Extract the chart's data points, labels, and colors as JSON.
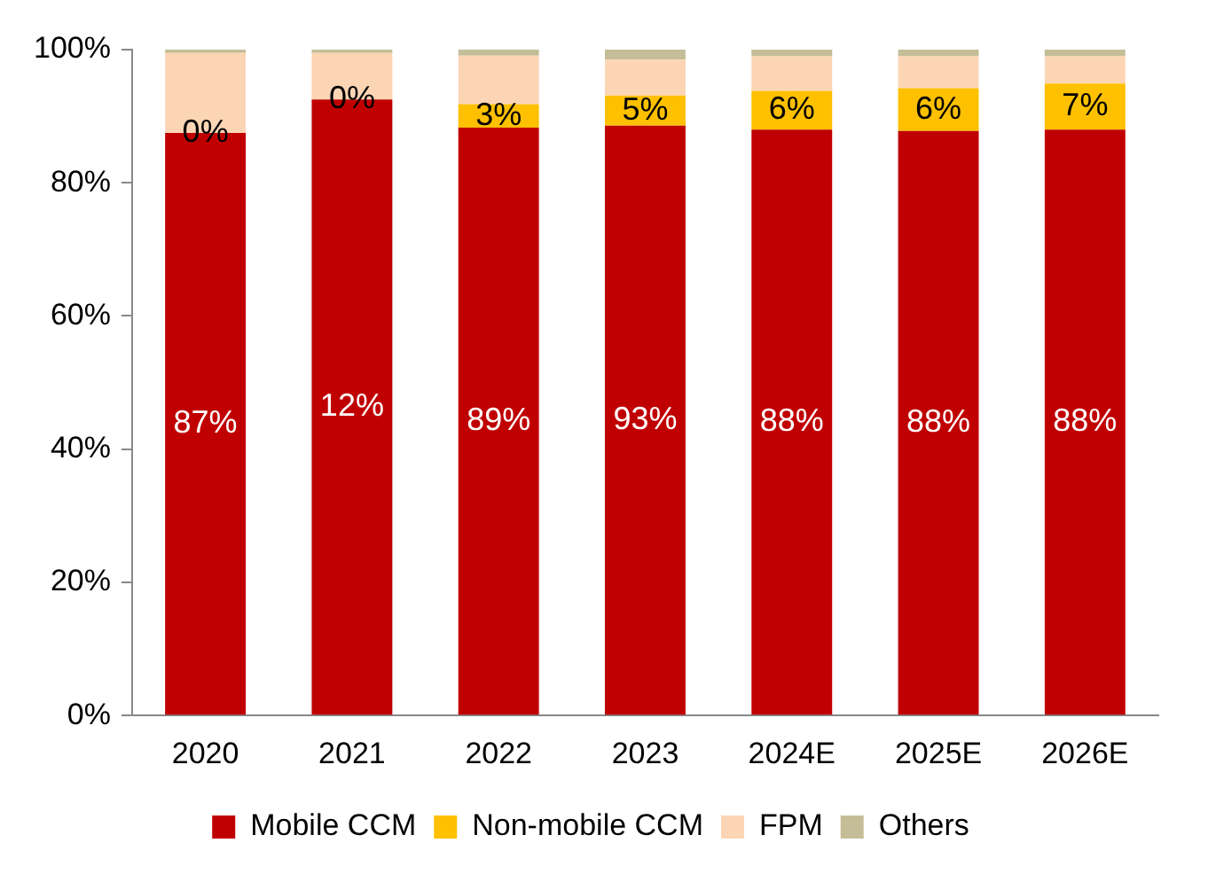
{
  "chart_data": {
    "type": "bar",
    "stacked": true,
    "categories": [
      "2020",
      "2021",
      "2022",
      "2023",
      "2024E",
      "2025E",
      "2026E"
    ],
    "series": [
      {
        "name": "Mobile CCM",
        "color": "#c00000",
        "values": [
          87.5,
          92.5,
          88.3,
          88.6,
          88,
          87.8,
          88
        ]
      },
      {
        "name": "Non-mobile CCM",
        "color": "#ffc000",
        "values": [
          0,
          0,
          3.5,
          4.5,
          5.8,
          6.4,
          6.9
        ],
        "value_labels": [
          "0%",
          "0%",
          "3%",
          "5%",
          "6%",
          "6%",
          "7%"
        ]
      },
      {
        "name": "FPM",
        "color": "#fcd5b5",
        "values": [
          12,
          7,
          7.3,
          5.4,
          5.2,
          4.8,
          4.1
        ]
      },
      {
        "name": "Others",
        "color": "#c4bd97",
        "values": [
          0.5,
          0.5,
          0.9,
          1.5,
          1,
          1,
          1
        ]
      }
    ],
    "ylim": [
      0,
      100
    ],
    "yticks": [
      {
        "value": 0,
        "label": "0%"
      },
      {
        "value": 20,
        "label": "20%"
      },
      {
        "value": 40,
        "label": "40%"
      },
      {
        "value": 60,
        "label": "60%"
      },
      {
        "value": 80,
        "label": "80%"
      },
      {
        "value": 100,
        "label": "100%"
      }
    ],
    "grid": false,
    "legend": "bottom",
    "annotations": [
      "87%",
      "12%",
      "89%",
      "93%",
      "88%",
      "88%",
      "88%"
    ]
  }
}
